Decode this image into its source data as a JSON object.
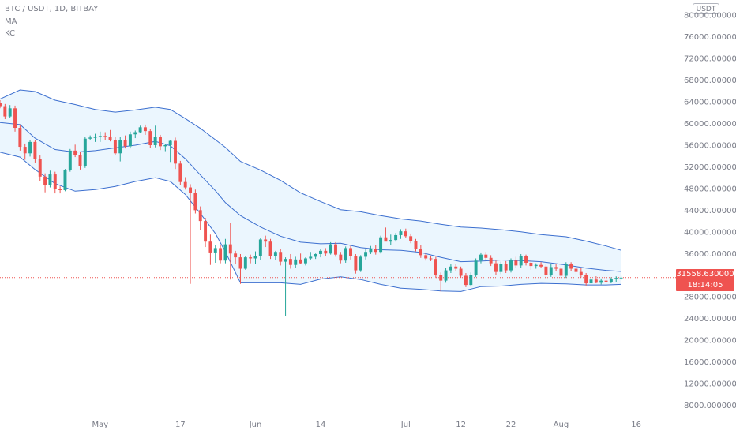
{
  "header": {
    "title": "BTC / USDT, 1D, BITBAY",
    "indicators": [
      "MA",
      "KC"
    ],
    "currency": "USDT"
  },
  "price_tag": {
    "price": "31558.630000",
    "countdown": "18:14:05"
  },
  "colors": {
    "up": "#26a69a",
    "down": "#ef5350",
    "channel": "#3c6fcf",
    "channel_fill": "#e3f2fd",
    "axis_text": "#787b86",
    "last_price": "#ef5350"
  },
  "chart_data": {
    "type": "candlestick",
    "title": "BTC / USDT, 1D, BITBAY",
    "x_range": [
      "2021-04-11",
      "2021-08-23"
    ],
    "ylim": [
      5600,
      82800
    ],
    "y_ticks": [
      "80000.000000",
      "76000.000000",
      "72000.000000",
      "68000.000000",
      "64000.000000",
      "60000.000000",
      "56000.000000",
      "52000.000000",
      "48000.000000",
      "44000.000000",
      "40000.000000",
      "36000.000000",
      "28000.000000",
      "24000.000000",
      "20000.000000",
      "16000.000000",
      "12000.000000",
      "8000.000000"
    ],
    "x_ticks": [
      {
        "label": "May",
        "date": "2021-05-01"
      },
      {
        "label": "17",
        "date": "2021-05-17"
      },
      {
        "label": "Jun",
        "date": "2021-06-01"
      },
      {
        "label": "14",
        "date": "2021-06-14"
      },
      {
        "label": "Jul",
        "date": "2021-07-01"
      },
      {
        "label": "12",
        "date": "2021-07-12"
      },
      {
        "label": "22",
        "date": "2021-07-22"
      },
      {
        "label": "Aug",
        "date": "2021-08-01"
      },
      {
        "label": "16",
        "date": "2021-08-16"
      }
    ],
    "last_price": 31558.63,
    "candles": [
      [
        "2021-04-11",
        63800,
        64300,
        62800,
        63200
      ],
      [
        "2021-04-12",
        63200,
        63600,
        60800,
        61300
      ],
      [
        "2021-04-13",
        61300,
        63400,
        61000,
        62800
      ],
      [
        "2021-04-14",
        62800,
        63300,
        58500,
        59200
      ],
      [
        "2021-04-15",
        59200,
        59700,
        55000,
        55700
      ],
      [
        "2021-04-16",
        55700,
        56300,
        53300,
        54500
      ],
      [
        "2021-04-17",
        54500,
        57000,
        53900,
        56600
      ],
      [
        "2021-04-18",
        56600,
        56900,
        52800,
        53400
      ],
      [
        "2021-04-19",
        53400,
        54100,
        49300,
        50200
      ],
      [
        "2021-04-20",
        50200,
        50800,
        47300,
        48700
      ],
      [
        "2021-04-21",
        48700,
        51300,
        48200,
        50600
      ],
      [
        "2021-04-22",
        50600,
        51100,
        47100,
        47900
      ],
      [
        "2021-04-23",
        47900,
        48400,
        47100,
        47700
      ],
      [
        "2021-04-24",
        47700,
        51600,
        47500,
        51400
      ],
      [
        "2021-04-25",
        51400,
        55300,
        51100,
        55000
      ],
      [
        "2021-04-26",
        55000,
        56100,
        53800,
        54200
      ],
      [
        "2021-04-27",
        54200,
        54800,
        51500,
        52100
      ],
      [
        "2021-04-28",
        52100,
        57600,
        51800,
        57200
      ],
      [
        "2021-04-29",
        57200,
        57800,
        56900,
        57400
      ],
      [
        "2021-04-30",
        57400,
        58100,
        56600,
        57500
      ],
      [
        "2021-05-01",
        57500,
        58500,
        56600,
        57700
      ],
      [
        "2021-05-02",
        57700,
        58400,
        56900,
        57500
      ],
      [
        "2021-05-03",
        57500,
        58800,
        56700,
        56900
      ],
      [
        "2021-05-04",
        56900,
        57500,
        54100,
        54500
      ],
      [
        "2021-05-05",
        54500,
        57500,
        53000,
        57000
      ],
      [
        "2021-05-06",
        57000,
        57800,
        55400,
        55800
      ],
      [
        "2021-05-07",
        55800,
        58500,
        55400,
        58000
      ],
      [
        "2021-05-08",
        58000,
        58700,
        57300,
        58400
      ],
      [
        "2021-05-09",
        58400,
        59600,
        58200,
        59300
      ],
      [
        "2021-05-10",
        59300,
        59800,
        57900,
        58600
      ],
      [
        "2021-05-11",
        58600,
        59000,
        55500,
        56000
      ],
      [
        "2021-05-12",
        56000,
        59600,
        55600,
        57600
      ],
      [
        "2021-05-13",
        57600,
        57900,
        55100,
        55800
      ],
      [
        "2021-05-14",
        55800,
        56200,
        54900,
        56000
      ],
      [
        "2021-05-15",
        56000,
        57000,
        52900,
        56800
      ],
      [
        "2021-05-16",
        56800,
        57400,
        51600,
        52600
      ],
      [
        "2021-05-17",
        52600,
        53100,
        48700,
        49200
      ],
      [
        "2021-05-18",
        49200,
        50100,
        47800,
        48200
      ],
      [
        "2021-05-19",
        48200,
        48800,
        30400,
        47200
      ],
      [
        "2021-05-20",
        47200,
        47800,
        43400,
        44000
      ],
      [
        "2021-05-21",
        44000,
        44700,
        40300,
        42000
      ],
      [
        "2021-05-22",
        42000,
        42600,
        37200,
        38200
      ],
      [
        "2021-05-23",
        38200,
        39500,
        33900,
        36200
      ],
      [
        "2021-05-24",
        36200,
        37600,
        34300,
        37000
      ],
      [
        "2021-05-25",
        37000,
        37600,
        34200,
        34700
      ],
      [
        "2021-05-26",
        34700,
        38700,
        34200,
        37700
      ],
      [
        "2021-05-27",
        37700,
        41700,
        31200,
        36000
      ],
      [
        "2021-05-28",
        36000,
        36500,
        34000,
        35300
      ],
      [
        "2021-05-29",
        35300,
        35900,
        30400,
        33200
      ],
      [
        "2021-05-30",
        33200,
        35500,
        33000,
        35300
      ],
      [
        "2021-05-31",
        35300,
        35800,
        34200,
        35100
      ],
      [
        "2021-06-01",
        35100,
        36400,
        34100,
        35600
      ],
      [
        "2021-06-02",
        35600,
        38900,
        34800,
        38600
      ],
      [
        "2021-06-03",
        38600,
        39300,
        37200,
        38200
      ],
      [
        "2021-06-04",
        38200,
        38700,
        35000,
        35600
      ],
      [
        "2021-06-05",
        35600,
        36500,
        34800,
        36300
      ],
      [
        "2021-06-06",
        36300,
        36800,
        33800,
        34500
      ],
      [
        "2021-06-07",
        34500,
        35300,
        24500,
        35000
      ],
      [
        "2021-06-08",
        35000,
        35900,
        33200,
        33900
      ],
      [
        "2021-06-09",
        33900,
        35400,
        33400,
        34900
      ],
      [
        "2021-06-10",
        34900,
        36000,
        34100,
        34200
      ],
      [
        "2021-06-11",
        34200,
        35300,
        33800,
        35100
      ],
      [
        "2021-06-12",
        35100,
        36300,
        34800,
        35400
      ],
      [
        "2021-06-13",
        35400,
        36000,
        35000,
        35900
      ],
      [
        "2021-06-14",
        35900,
        36800,
        35300,
        36500
      ],
      [
        "2021-06-15",
        36500,
        37000,
        35600,
        36000
      ],
      [
        "2021-06-16",
        36000,
        38100,
        35800,
        37700
      ],
      [
        "2021-06-17",
        37700,
        38100,
        35400,
        35800
      ],
      [
        "2021-06-18",
        35800,
        36300,
        34200,
        34700
      ],
      [
        "2021-06-19",
        34700,
        37300,
        34300,
        37000
      ],
      [
        "2021-06-20",
        37000,
        37400,
        34900,
        35500
      ],
      [
        "2021-06-21",
        35500,
        35900,
        32300,
        32900
      ],
      [
        "2021-06-22",
        32900,
        35700,
        32600,
        35400
      ],
      [
        "2021-06-23",
        35400,
        36800,
        34900,
        36300
      ],
      [
        "2021-06-24",
        36300,
        37400,
        35900,
        36800
      ],
      [
        "2021-06-25",
        36800,
        37500,
        35800,
        36300
      ],
      [
        "2021-06-26",
        36300,
        39300,
        36000,
        39000
      ],
      [
        "2021-06-27",
        39000,
        40800,
        38600,
        38200
      ],
      [
        "2021-06-28",
        38200,
        39500,
        37600,
        38500
      ],
      [
        "2021-06-29",
        38500,
        39800,
        38200,
        39400
      ],
      [
        "2021-06-30",
        39400,
        40500,
        38700,
        40100
      ],
      [
        "2021-07-01",
        40100,
        40600,
        38900,
        39200
      ],
      [
        "2021-07-02",
        39200,
        39700,
        37900,
        38300
      ],
      [
        "2021-07-03",
        38300,
        38700,
        36400,
        36900
      ],
      [
        "2021-07-04",
        36900,
        37600,
        35200,
        35700
      ],
      [
        "2021-07-05",
        35700,
        36200,
        34700,
        35100
      ],
      [
        "2021-07-06",
        35100,
        35500,
        34600,
        35000
      ],
      [
        "2021-07-07",
        35000,
        35400,
        31500,
        32000
      ],
      [
        "2021-07-08",
        32000,
        32500,
        29000,
        31000
      ],
      [
        "2021-07-09",
        31000,
        33300,
        30600,
        32900
      ],
      [
        "2021-07-10",
        32900,
        34000,
        32400,
        33600
      ],
      [
        "2021-07-11",
        33600,
        34000,
        32700,
        33200
      ],
      [
        "2021-07-12",
        33200,
        33600,
        31500,
        31900
      ],
      [
        "2021-07-13",
        31900,
        32400,
        29800,
        30200
      ],
      [
        "2021-07-14",
        30200,
        32500,
        29900,
        32100
      ],
      [
        "2021-07-15",
        32100,
        35100,
        31700,
        34700
      ],
      [
        "2021-07-16",
        34700,
        36200,
        34200,
        35800
      ],
      [
        "2021-07-17",
        35800,
        36300,
        34700,
        35200
      ],
      [
        "2021-07-18",
        35200,
        35700,
        33700,
        34200
      ],
      [
        "2021-07-19",
        34200,
        34700,
        32100,
        32600
      ],
      [
        "2021-07-20",
        32600,
        34500,
        32200,
        34100
      ],
      [
        "2021-07-21",
        34100,
        34600,
        32400,
        32900
      ],
      [
        "2021-07-22",
        32900,
        35100,
        32500,
        34700
      ],
      [
        "2021-07-23",
        34700,
        35400,
        33300,
        33800
      ],
      [
        "2021-07-24",
        33800,
        35900,
        33400,
        35500
      ],
      [
        "2021-07-25",
        35500,
        35800,
        33800,
        34300
      ],
      [
        "2021-07-26",
        34300,
        34700,
        33000,
        33700
      ],
      [
        "2021-07-27",
        33700,
        34200,
        33200,
        33900
      ],
      [
        "2021-07-28",
        33900,
        34400,
        33300,
        33600
      ],
      [
        "2021-07-29",
        33600,
        34000,
        31500,
        32000
      ],
      [
        "2021-07-30",
        32000,
        34000,
        31700,
        33500
      ],
      [
        "2021-07-31",
        33500,
        34000,
        32800,
        33200
      ],
      [
        "2021-08-01",
        33200,
        33600,
        31500,
        31900
      ],
      [
        "2021-08-02",
        31900,
        34400,
        31500,
        34000
      ],
      [
        "2021-08-03",
        34000,
        34400,
        32800,
        33200
      ],
      [
        "2021-08-04",
        33200,
        33600,
        32100,
        32600
      ],
      [
        "2021-08-05",
        32600,
        33300,
        31600,
        32000
      ],
      [
        "2021-08-06",
        32000,
        32400,
        30100,
        30500
      ],
      [
        "2021-08-07",
        30500,
        31500,
        30200,
        31200
      ],
      [
        "2021-08-08",
        31200,
        31800,
        30500,
        30600
      ],
      [
        "2021-08-09",
        30600,
        31400,
        30300,
        31000
      ],
      [
        "2021-08-10",
        31000,
        31500,
        30500,
        30800
      ],
      [
        "2021-08-11",
        30800,
        31600,
        30500,
        31300
      ],
      [
        "2021-08-12",
        31300,
        31800,
        30800,
        31500
      ],
      [
        "2021-08-13",
        31500,
        31900,
        31100,
        31558.63
      ]
    ],
    "kc_upper": [
      [
        "2021-04-11",
        64500
      ],
      [
        "2021-04-15",
        66200
      ],
      [
        "2021-04-18",
        65900
      ],
      [
        "2021-04-22",
        64300
      ],
      [
        "2021-04-26",
        63500
      ],
      [
        "2021-04-30",
        62600
      ],
      [
        "2021-05-04",
        62100
      ],
      [
        "2021-05-08",
        62500
      ],
      [
        "2021-05-12",
        63000
      ],
      [
        "2021-05-15",
        62600
      ],
      [
        "2021-05-18",
        60900
      ],
      [
        "2021-05-21",
        59100
      ],
      [
        "2021-05-24",
        57000
      ],
      [
        "2021-05-26",
        55600
      ],
      [
        "2021-05-29",
        53000
      ],
      [
        "2021-06-02",
        51400
      ],
      [
        "2021-06-06",
        49500
      ],
      [
        "2021-06-10",
        47200
      ],
      [
        "2021-06-14",
        45600
      ],
      [
        "2021-06-18",
        44100
      ],
      [
        "2021-06-22",
        43700
      ],
      [
        "2021-06-26",
        43000
      ],
      [
        "2021-06-30",
        42400
      ],
      [
        "2021-07-04",
        42000
      ],
      [
        "2021-07-08",
        41400
      ],
      [
        "2021-07-12",
        40900
      ],
      [
        "2021-07-16",
        40700
      ],
      [
        "2021-07-20",
        40400
      ],
      [
        "2021-07-24",
        40000
      ],
      [
        "2021-07-28",
        39500
      ],
      [
        "2021-08-02",
        39100
      ],
      [
        "2021-08-06",
        38300
      ],
      [
        "2021-08-10",
        37400
      ],
      [
        "2021-08-13",
        36600
      ]
    ],
    "kc_middle": [
      [
        "2021-04-11",
        60200
      ],
      [
        "2021-04-15",
        59800
      ],
      [
        "2021-04-18",
        57300
      ],
      [
        "2021-04-22",
        55200
      ],
      [
        "2021-04-26",
        54700
      ],
      [
        "2021-04-30",
        55000
      ],
      [
        "2021-05-04",
        55500
      ],
      [
        "2021-05-08",
        56000
      ],
      [
        "2021-05-12",
        56700
      ],
      [
        "2021-05-15",
        55900
      ],
      [
        "2021-05-18",
        53500
      ],
      [
        "2021-05-21",
        50500
      ],
      [
        "2021-05-24",
        47600
      ],
      [
        "2021-05-26",
        45400
      ],
      [
        "2021-05-29",
        43000
      ],
      [
        "2021-06-02",
        40900
      ],
      [
        "2021-06-06",
        39200
      ],
      [
        "2021-06-10",
        38100
      ],
      [
        "2021-06-14",
        37800
      ],
      [
        "2021-06-18",
        37900
      ],
      [
        "2021-06-22",
        37100
      ],
      [
        "2021-06-26",
        36700
      ],
      [
        "2021-06-30",
        36600
      ],
      [
        "2021-07-04",
        36200
      ],
      [
        "2021-07-08",
        35300
      ],
      [
        "2021-07-12",
        34500
      ],
      [
        "2021-07-16",
        34600
      ],
      [
        "2021-07-20",
        34800
      ],
      [
        "2021-07-24",
        34700
      ],
      [
        "2021-07-28",
        34500
      ],
      [
        "2021-08-02",
        33900
      ],
      [
        "2021-08-06",
        33300
      ],
      [
        "2021-08-10",
        32900
      ],
      [
        "2021-08-13",
        32700
      ]
    ],
    "kc_lower": [
      [
        "2021-04-11",
        54700
      ],
      [
        "2021-04-15",
        53800
      ],
      [
        "2021-04-18",
        51500
      ],
      [
        "2021-04-22",
        48900
      ],
      [
        "2021-04-26",
        47500
      ],
      [
        "2021-04-30",
        47800
      ],
      [
        "2021-05-04",
        48400
      ],
      [
        "2021-05-08",
        49300
      ],
      [
        "2021-05-12",
        50000
      ],
      [
        "2021-05-15",
        49300
      ],
      [
        "2021-05-18",
        46900
      ],
      [
        "2021-05-21",
        43400
      ],
      [
        "2021-05-24",
        39700
      ],
      [
        "2021-05-26",
        36300
      ],
      [
        "2021-05-29",
        30600
      ],
      [
        "2021-06-02",
        30600
      ],
      [
        "2021-06-06",
        30600
      ],
      [
        "2021-06-10",
        30300
      ],
      [
        "2021-06-14",
        31300
      ],
      [
        "2021-06-18",
        31700
      ],
      [
        "2021-06-22",
        31200
      ],
      [
        "2021-06-26",
        30300
      ],
      [
        "2021-06-30",
        29600
      ],
      [
        "2021-07-04",
        29400
      ],
      [
        "2021-07-08",
        29100
      ],
      [
        "2021-07-12",
        29000
      ],
      [
        "2021-07-16",
        29900
      ],
      [
        "2021-07-20",
        30000
      ],
      [
        "2021-07-24",
        30300
      ],
      [
        "2021-07-28",
        30500
      ],
      [
        "2021-08-02",
        30400
      ],
      [
        "2021-08-06",
        30200
      ],
      [
        "2021-08-10",
        30200
      ],
      [
        "2021-08-13",
        30300
      ]
    ]
  }
}
